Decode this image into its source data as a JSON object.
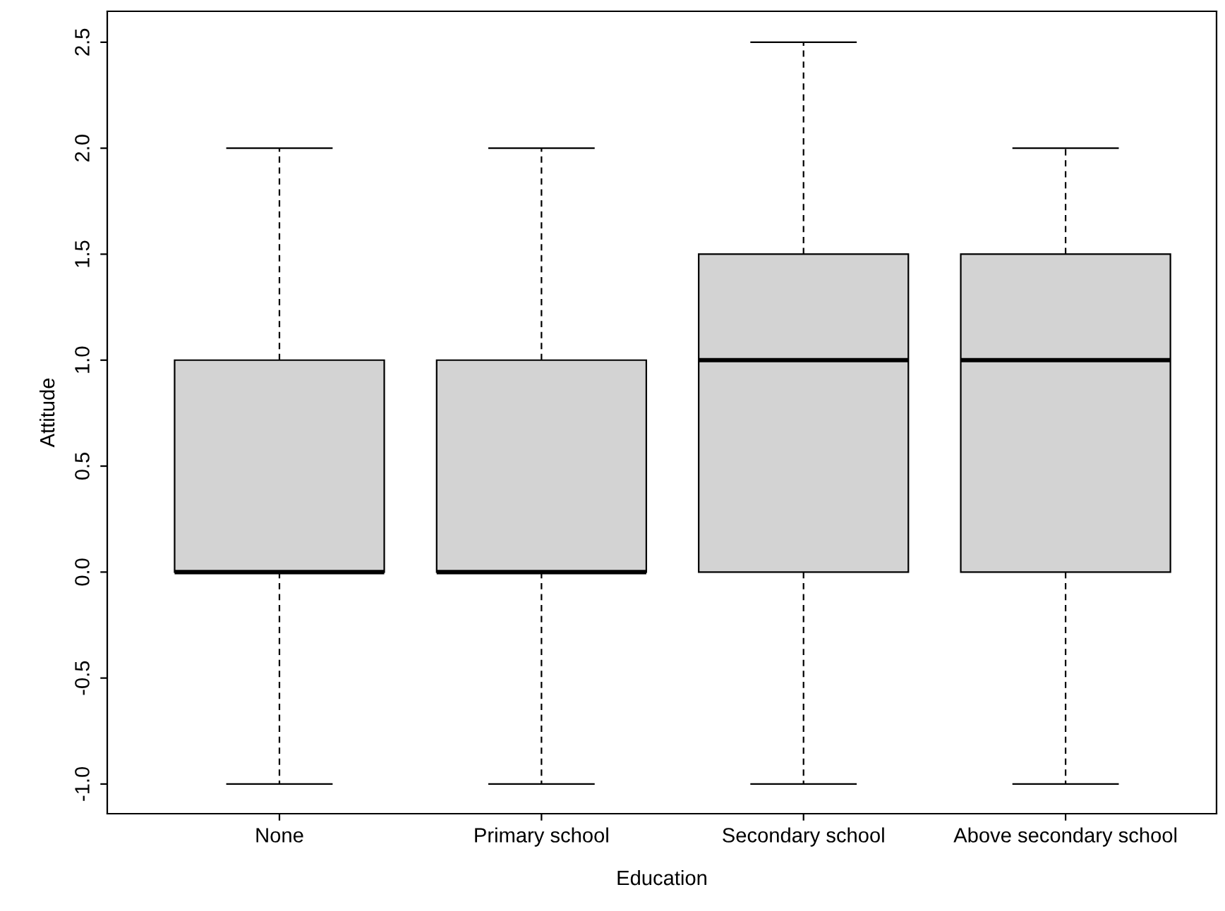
{
  "chart_data": {
    "type": "box",
    "xlabel": "Education",
    "ylabel": "Attitude",
    "categories": [
      "None",
      "Primary school",
      "Secondary school",
      "Above secondary school"
    ],
    "boxes": [
      {
        "low": -1.0,
        "q1": 0.0,
        "median": 0.0,
        "q3": 1.0,
        "high": 2.0
      },
      {
        "low": -1.0,
        "q1": 0.0,
        "median": 0.0,
        "q3": 1.0,
        "high": 2.0
      },
      {
        "low": -1.0,
        "q1": 0.0,
        "median": 1.0,
        "q3": 1.5,
        "high": 2.5
      },
      {
        "low": -1.0,
        "q1": 0.0,
        "median": 1.0,
        "q3": 1.5,
        "high": 2.0
      }
    ],
    "color": "#d3d3d3",
    "ylim": [
      -1.14,
      2.646
    ],
    "yticks": [
      {
        "value": -1.0,
        "label": "-1.0"
      },
      {
        "value": -0.5,
        "label": "-0.5"
      },
      {
        "value": 0,
        "label": "0.0"
      },
      0.5,
      {
        "value": 1,
        "label": "1.0"
      },
      1.5,
      {
        "value": 2,
        "label": "2.0"
      },
      2.5
    ],
    "grid": false,
    "legend": false
  }
}
